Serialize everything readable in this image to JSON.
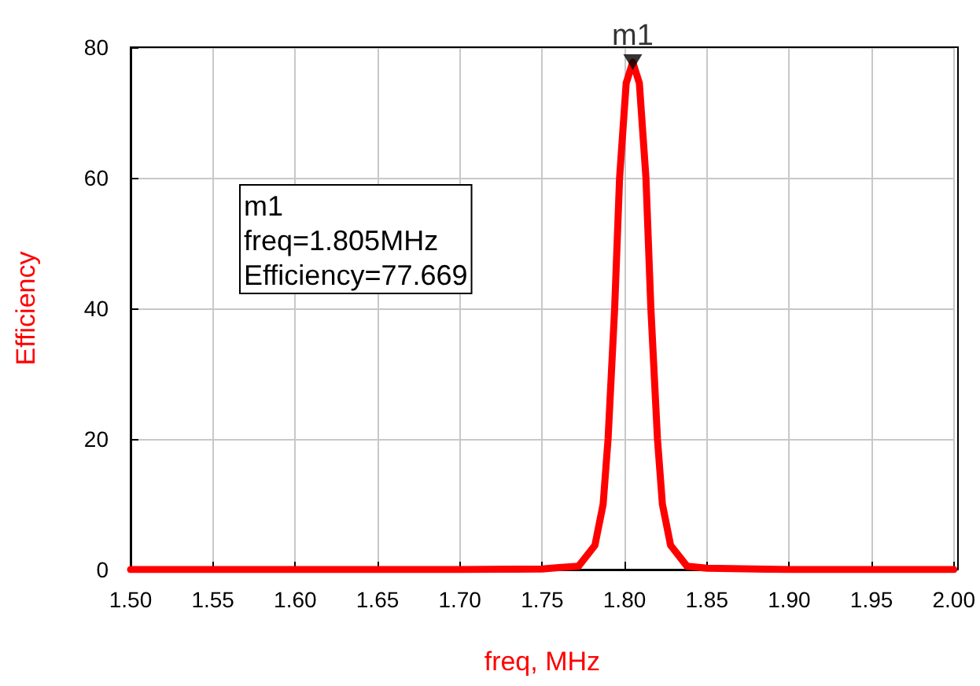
{
  "chart_data": {
    "type": "line",
    "xlabel": "freq, MHz",
    "ylabel": "Efficiency",
    "series": [
      {
        "color": "#ff0000",
        "x": [
          1.5,
          1.6,
          1.7,
          1.75,
          1.76,
          1.772,
          1.782,
          1.787,
          1.79,
          1.794,
          1.797,
          1.801,
          1.805,
          1.809,
          1.813,
          1.816,
          1.82,
          1.823,
          1.828,
          1.838,
          1.85,
          1.9,
          2.0
        ],
        "values": [
          0,
          0,
          0,
          0.1,
          0.3,
          0.5,
          3.7,
          10,
          20,
          40,
          60,
          74.5,
          77.7,
          74.5,
          60,
          40,
          20,
          10,
          3.7,
          0.5,
          0.2,
          0,
          0
        ]
      },
      {
        "type": "scatter",
        "color": "#000000",
        "marker": "triangle",
        "x": [
          1.805
        ],
        "values": [
          77.7
        ]
      }
    ],
    "xlim": [
      1.5,
      2.0
    ],
    "xticks": [
      {
        "value": 1.5,
        "label": "1.50"
      },
      {
        "value": 1.55,
        "label": "1.55"
      },
      {
        "value": 1.6,
        "label": "1.60"
      },
      {
        "value": 1.65,
        "label": "1.65"
      },
      {
        "value": 1.7,
        "label": "1.70"
      },
      {
        "value": 1.75,
        "label": "1.75"
      },
      {
        "value": 1.8,
        "label": "1.80"
      },
      {
        "value": 1.85,
        "label": "1.85"
      },
      {
        "value": 1.9,
        "label": "1.90"
      },
      {
        "value": 1.95,
        "label": "1.95"
      },
      {
        "value": 2.0,
        "label": "2.00"
      }
    ],
    "ylim": [
      0,
      80
    ],
    "yticks": [
      0,
      20,
      40,
      60,
      80
    ],
    "annotations": [
      {
        "text": "m1",
        "x": 1.805,
        "y": 77.7
      },
      "m1\nfreq=1.805MHz\nEfficiency=77.669"
    ],
    "grid": true,
    "marker": "none",
    "line_style": "solid"
  }
}
